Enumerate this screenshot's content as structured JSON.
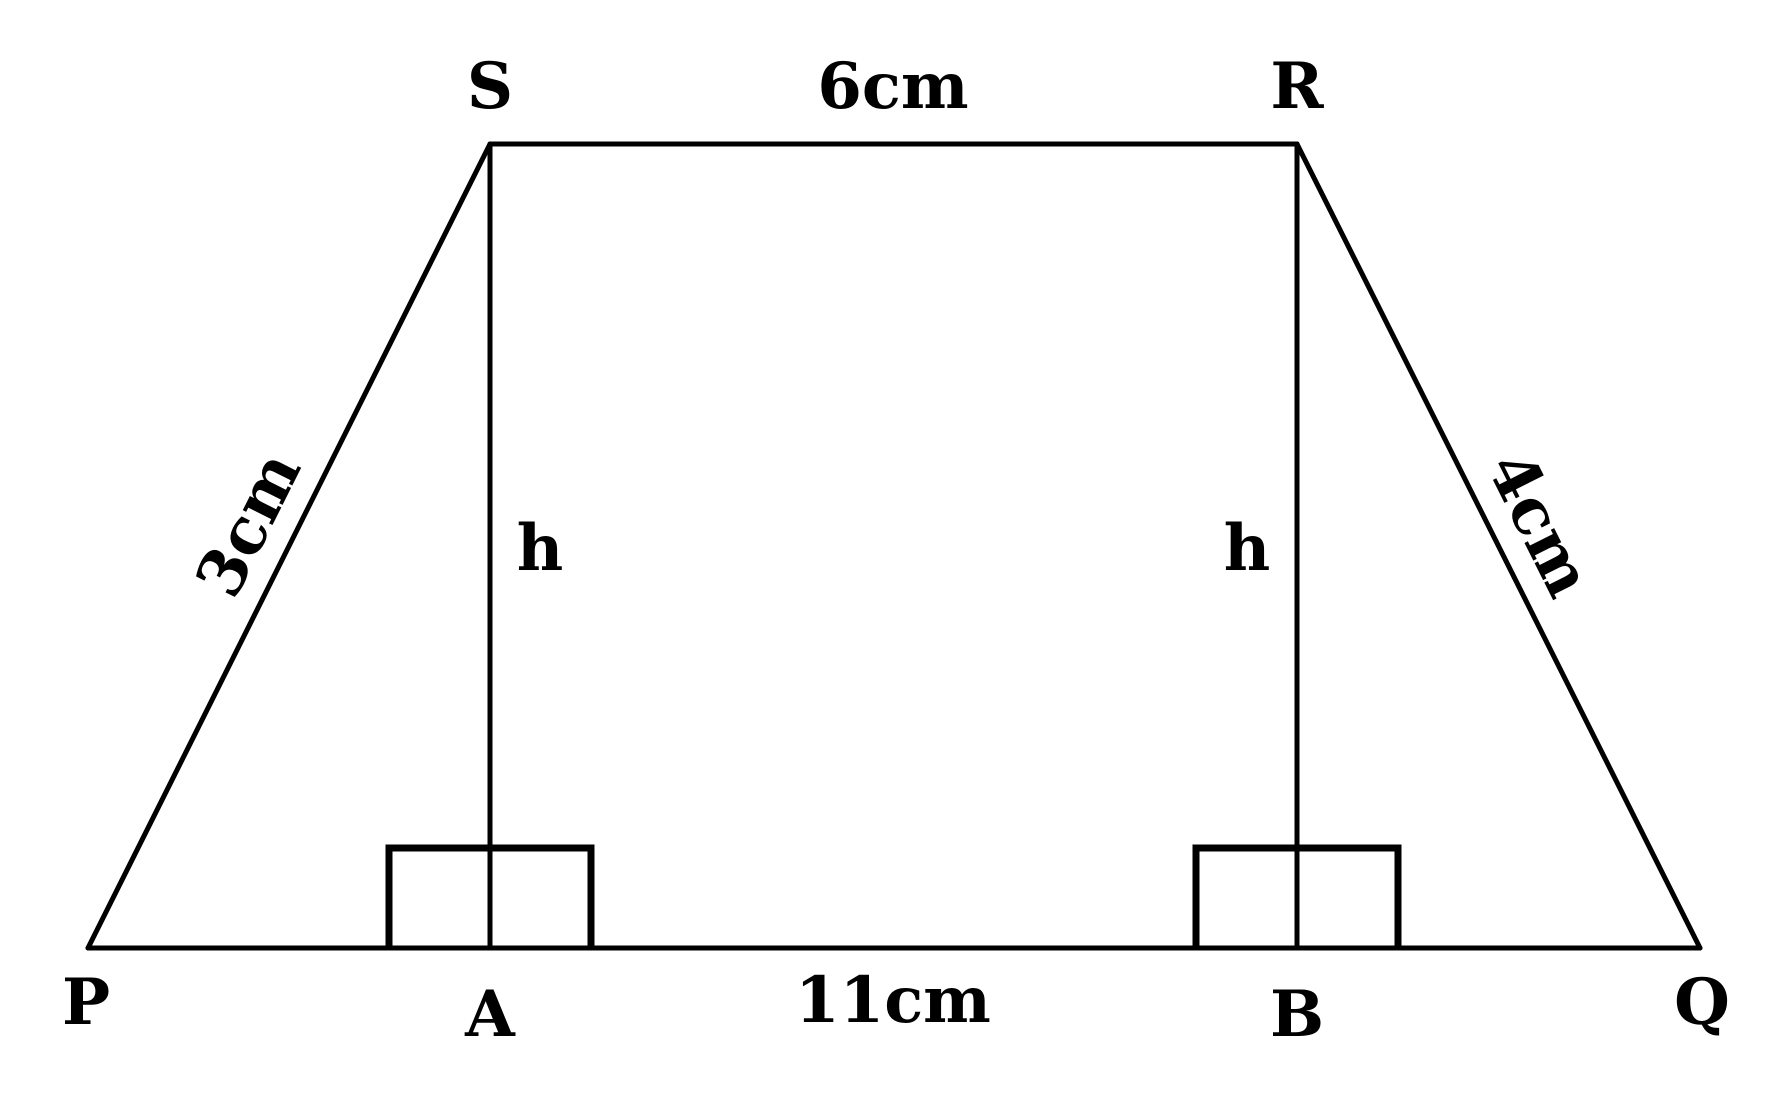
{
  "vertices": {
    "S": "S",
    "R": "R",
    "P": "P",
    "Q": "Q",
    "A": "A",
    "B": "B"
  },
  "measurements": {
    "top_side": "6cm",
    "bottom_side": "11cm",
    "left_side": "3cm",
    "right_side": "4cm",
    "height_left": "h",
    "height_right": "h"
  },
  "colors": {
    "stroke": "#000000",
    "background": "#ffffff"
  }
}
